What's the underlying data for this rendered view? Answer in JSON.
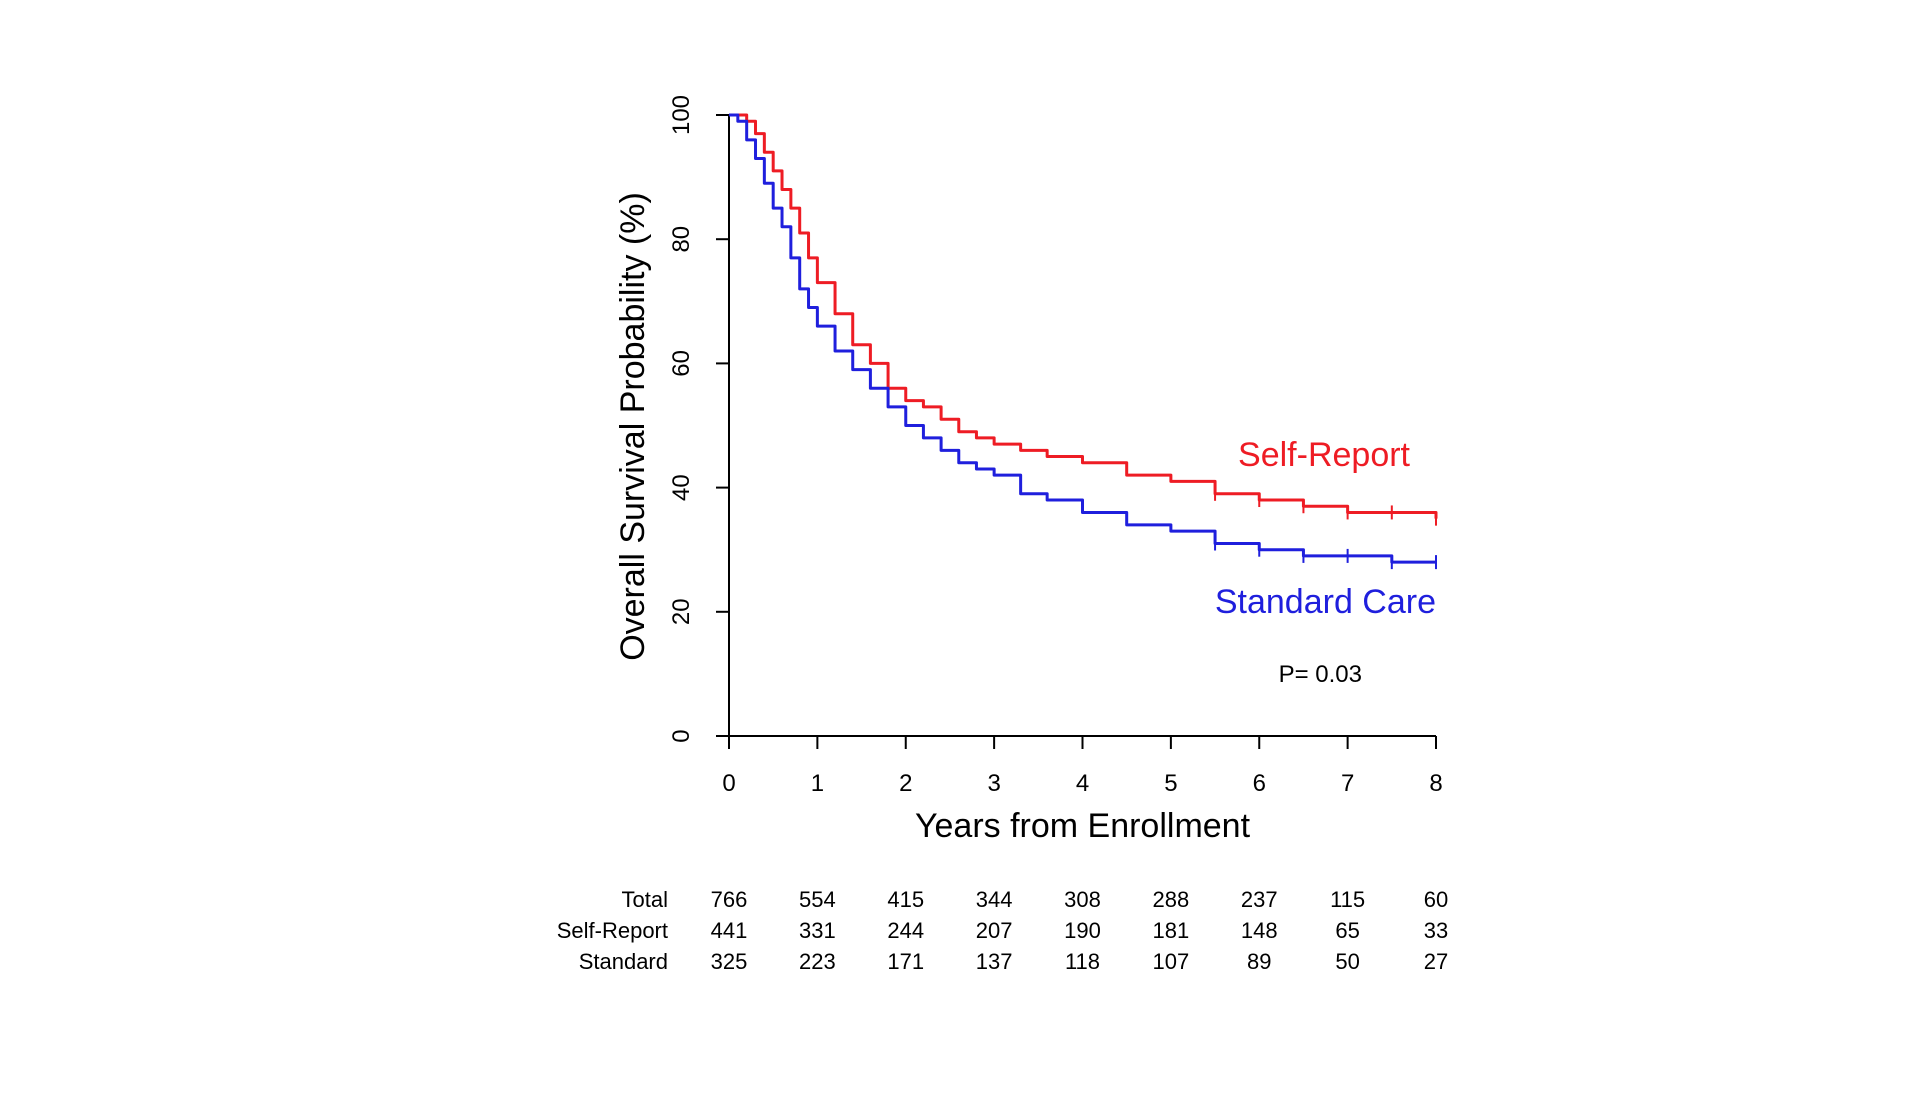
{
  "chart_data": {
    "type": "line",
    "xlabel": "Years from Enrollment",
    "ylabel": "Overall Survival Probability (%)",
    "xlim": [
      0,
      8
    ],
    "ylim": [
      0,
      100
    ],
    "x_ticks": [
      "0",
      "1",
      "2",
      "3",
      "4",
      "5",
      "6",
      "7",
      "8"
    ],
    "y_ticks": [
      "0",
      "20",
      "40",
      "60",
      "80",
      "100"
    ],
    "grid": false,
    "series": [
      {
        "name": "Self-Report",
        "color": "#ee1c24",
        "x": [
          0,
          0.1,
          0.2,
          0.3,
          0.4,
          0.5,
          0.6,
          0.7,
          0.8,
          0.9,
          1.0,
          1.2,
          1.4,
          1.6,
          1.8,
          2.0,
          2.2,
          2.4,
          2.6,
          2.8,
          3.0,
          3.3,
          3.6,
          4.0,
          4.5,
          5.0,
          5.5,
          6.0,
          6.5,
          7.0,
          7.5,
          8.0
        ],
        "values": [
          100,
          100,
          99,
          97,
          94,
          91,
          88,
          85,
          81,
          77,
          73,
          68,
          63,
          60,
          56,
          54,
          53,
          51,
          49,
          48,
          47,
          46,
          45,
          44,
          42,
          41,
          39,
          38,
          37,
          36,
          36,
          35
        ]
      },
      {
        "name": "Standard Care",
        "color": "#1f1fdd",
        "x": [
          0,
          0.1,
          0.2,
          0.3,
          0.4,
          0.5,
          0.6,
          0.7,
          0.8,
          0.9,
          1.0,
          1.2,
          1.4,
          1.6,
          1.8,
          2.0,
          2.2,
          2.4,
          2.6,
          2.8,
          3.0,
          3.3,
          3.6,
          4.0,
          4.5,
          5.0,
          5.5,
          6.0,
          6.5,
          7.0,
          7.5,
          8.0
        ],
        "values": [
          100,
          99,
          96,
          93,
          89,
          85,
          82,
          77,
          72,
          69,
          66,
          62,
          59,
          56,
          53,
          50,
          48,
          46,
          44,
          43,
          42,
          39,
          38,
          36,
          34,
          33,
          31,
          30,
          29,
          29,
          28,
          28
        ]
      }
    ],
    "annotations": {
      "self_report_label": "Self-Report",
      "standard_care_label": "Standard Care",
      "p_value": "P= 0.03"
    },
    "risk_table": {
      "rows": [
        {
          "label": "Total",
          "values": [
            "766",
            "554",
            "415",
            "344",
            "308",
            "288",
            "237",
            "115",
            "60"
          ]
        },
        {
          "label": "Self-Report",
          "values": [
            "441",
            "331",
            "244",
            "207",
            "190",
            "181",
            "148",
            "65",
            "33"
          ]
        },
        {
          "label": "Standard",
          "values": [
            "325",
            "223",
            "171",
            "137",
            "118",
            "107",
            "89",
            "50",
            "27"
          ]
        }
      ]
    }
  }
}
